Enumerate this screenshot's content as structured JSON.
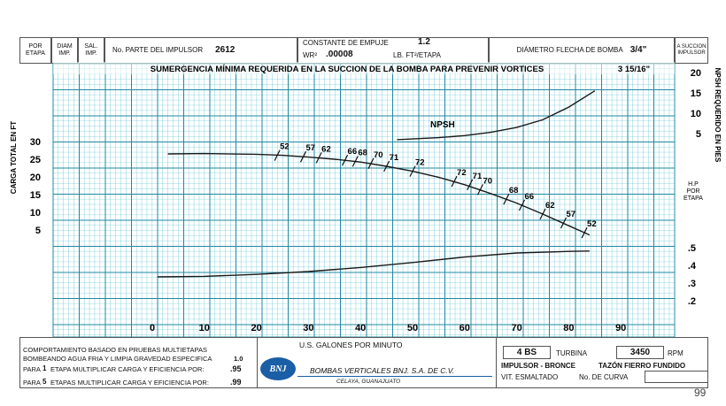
{
  "header": {
    "por_etapa": "POR ETAPA",
    "diam_imp": "DIAM IMP.",
    "sal_imp": "SAL. IMP.",
    "parte_label": "No. PARTE DEL IMPULSOR",
    "parte_value": "2612",
    "empuje_label": "CONSTANTE DE EMPUJE",
    "empuje_value": "1.2",
    "wr_label": "WR²",
    "wr_value": ".00008",
    "wr_units": "LB. FT²/ETAPA",
    "flecha_label": "DIÁMETRO FLECHA DE BOMBA",
    "flecha_value": "3/4\"",
    "corner": "A SUCCION IMPULSOR"
  },
  "chart_data": {
    "type": "line",
    "title": "SUMERGENCIA MÍNIMA REQUERIDA EN LA SUCCION DE LA BOMBA PARA PREVENIR  VORTICES",
    "title_value": "3 15/16\"",
    "xlabel": "U.S. GALONES POR MINUTO",
    "ylabel_left": "CARGA TOTAL EN FT",
    "ylabel_right": "NPSH REQUERIDO EN PIES",
    "ylabel_right_hp": "H.P POR ETAPA",
    "x_ticks": [
      "0",
      "10",
      "20",
      "30",
      "40",
      "50",
      "60",
      "70",
      "80",
      "90"
    ],
    "xlim": [
      0,
      90
    ],
    "y_left_ticks": [
      "30",
      "25",
      "20",
      "15",
      "10",
      "5"
    ],
    "y_npsh_ticks": [
      "20",
      "15",
      "10",
      "5"
    ],
    "y_hp_ticks": [
      ".5",
      ".4",
      ".3",
      ".2"
    ],
    "grid": true,
    "series": [
      {
        "id": "head",
        "x": [
          3,
          10,
          20,
          25,
          30,
          35,
          40,
          45,
          50,
          55,
          60,
          65,
          70,
          75,
          80,
          84
        ],
        "y": [
          26.5,
          26.6,
          26.4,
          26.1,
          25.6,
          25.0,
          24.2,
          23.0,
          21.6,
          19.9,
          17.8,
          15.3,
          12.6,
          9.5,
          6.2,
          3.6
        ]
      },
      {
        "id": "npsh",
        "label": "NPSH",
        "x": [
          47,
          55,
          60,
          65,
          70,
          75,
          80,
          85
        ],
        "y": [
          3.5,
          4.0,
          4.5,
          5.3,
          6.5,
          8.4,
          11.5,
          15.5
        ]
      },
      {
        "id": "hp",
        "x": [
          1,
          10,
          20,
          30,
          40,
          50,
          60,
          70,
          80,
          84
        ],
        "y": [
          0.335,
          0.338,
          0.349,
          0.365,
          0.388,
          0.416,
          0.447,
          0.47,
          0.479,
          0.481
        ]
      }
    ],
    "efficiency_marks": [
      {
        "label": "52",
        "x": 24,
        "y": 26.1
      },
      {
        "label": "57",
        "x": 29,
        "y": 25.7
      },
      {
        "label": "62",
        "x": 32,
        "y": 25.4
      },
      {
        "label": "66",
        "x": 37,
        "y": 24.7
      },
      {
        "label": "68",
        "x": 39,
        "y": 24.4
      },
      {
        "label": "70",
        "x": 42,
        "y": 23.8
      },
      {
        "label": "71",
        "x": 45,
        "y": 23.0
      },
      {
        "label": "72",
        "x": 50,
        "y": 21.6
      },
      {
        "label": "72",
        "x": 58,
        "y": 18.7
      },
      {
        "label": "71",
        "x": 61,
        "y": 17.8
      },
      {
        "label": "70",
        "x": 63,
        "y": 16.4
      },
      {
        "label": "68",
        "x": 68,
        "y": 13.7
      },
      {
        "label": "66",
        "x": 71,
        "y": 12.0
      },
      {
        "label": "62",
        "x": 75,
        "y": 9.5
      },
      {
        "label": "57",
        "x": 79,
        "y": 7.0
      },
      {
        "label": "52",
        "x": 83,
        "y": 4.2
      }
    ]
  },
  "footer": {
    "line1": "COMPORTAMIENTO BASADO EN PRUEBAS MULTIETAPAS",
    "line2": "BOMBEANDO AGUA FRIA Y LIMPIA GRAVEDAD ESPECIFICA",
    "line2_value": "1.0",
    "line3_a": "PARA",
    "line3_n": "1",
    "line3_b": "ETAPA MULTIPLICAR CARGA Y EFICIENCIA POR:",
    "line3_value": ".95",
    "line4_a": "PARA",
    "line4_n": "5",
    "line4_b": "ETAPAS MULTIPLICAR CARGA Y EFICIENCIA POR:",
    "line4_value": ".99",
    "logo": "BNJ",
    "company": "BOMBAS VERTICALES BNJ. S.A. DE C.V.",
    "city": "CELAYA, GUANAJUATO",
    "model": "4 BS",
    "turbina": "TURBINA",
    "rpm_value": "3450",
    "rpm": "RPM",
    "impulsor": "IMPULSOR - BRONCE",
    "tazon": "TAZÓN FIERRO FUNDIDO",
    "vit": "VIT. ESMALTADO",
    "curva": "No. DE CURVA",
    "page": "99"
  }
}
